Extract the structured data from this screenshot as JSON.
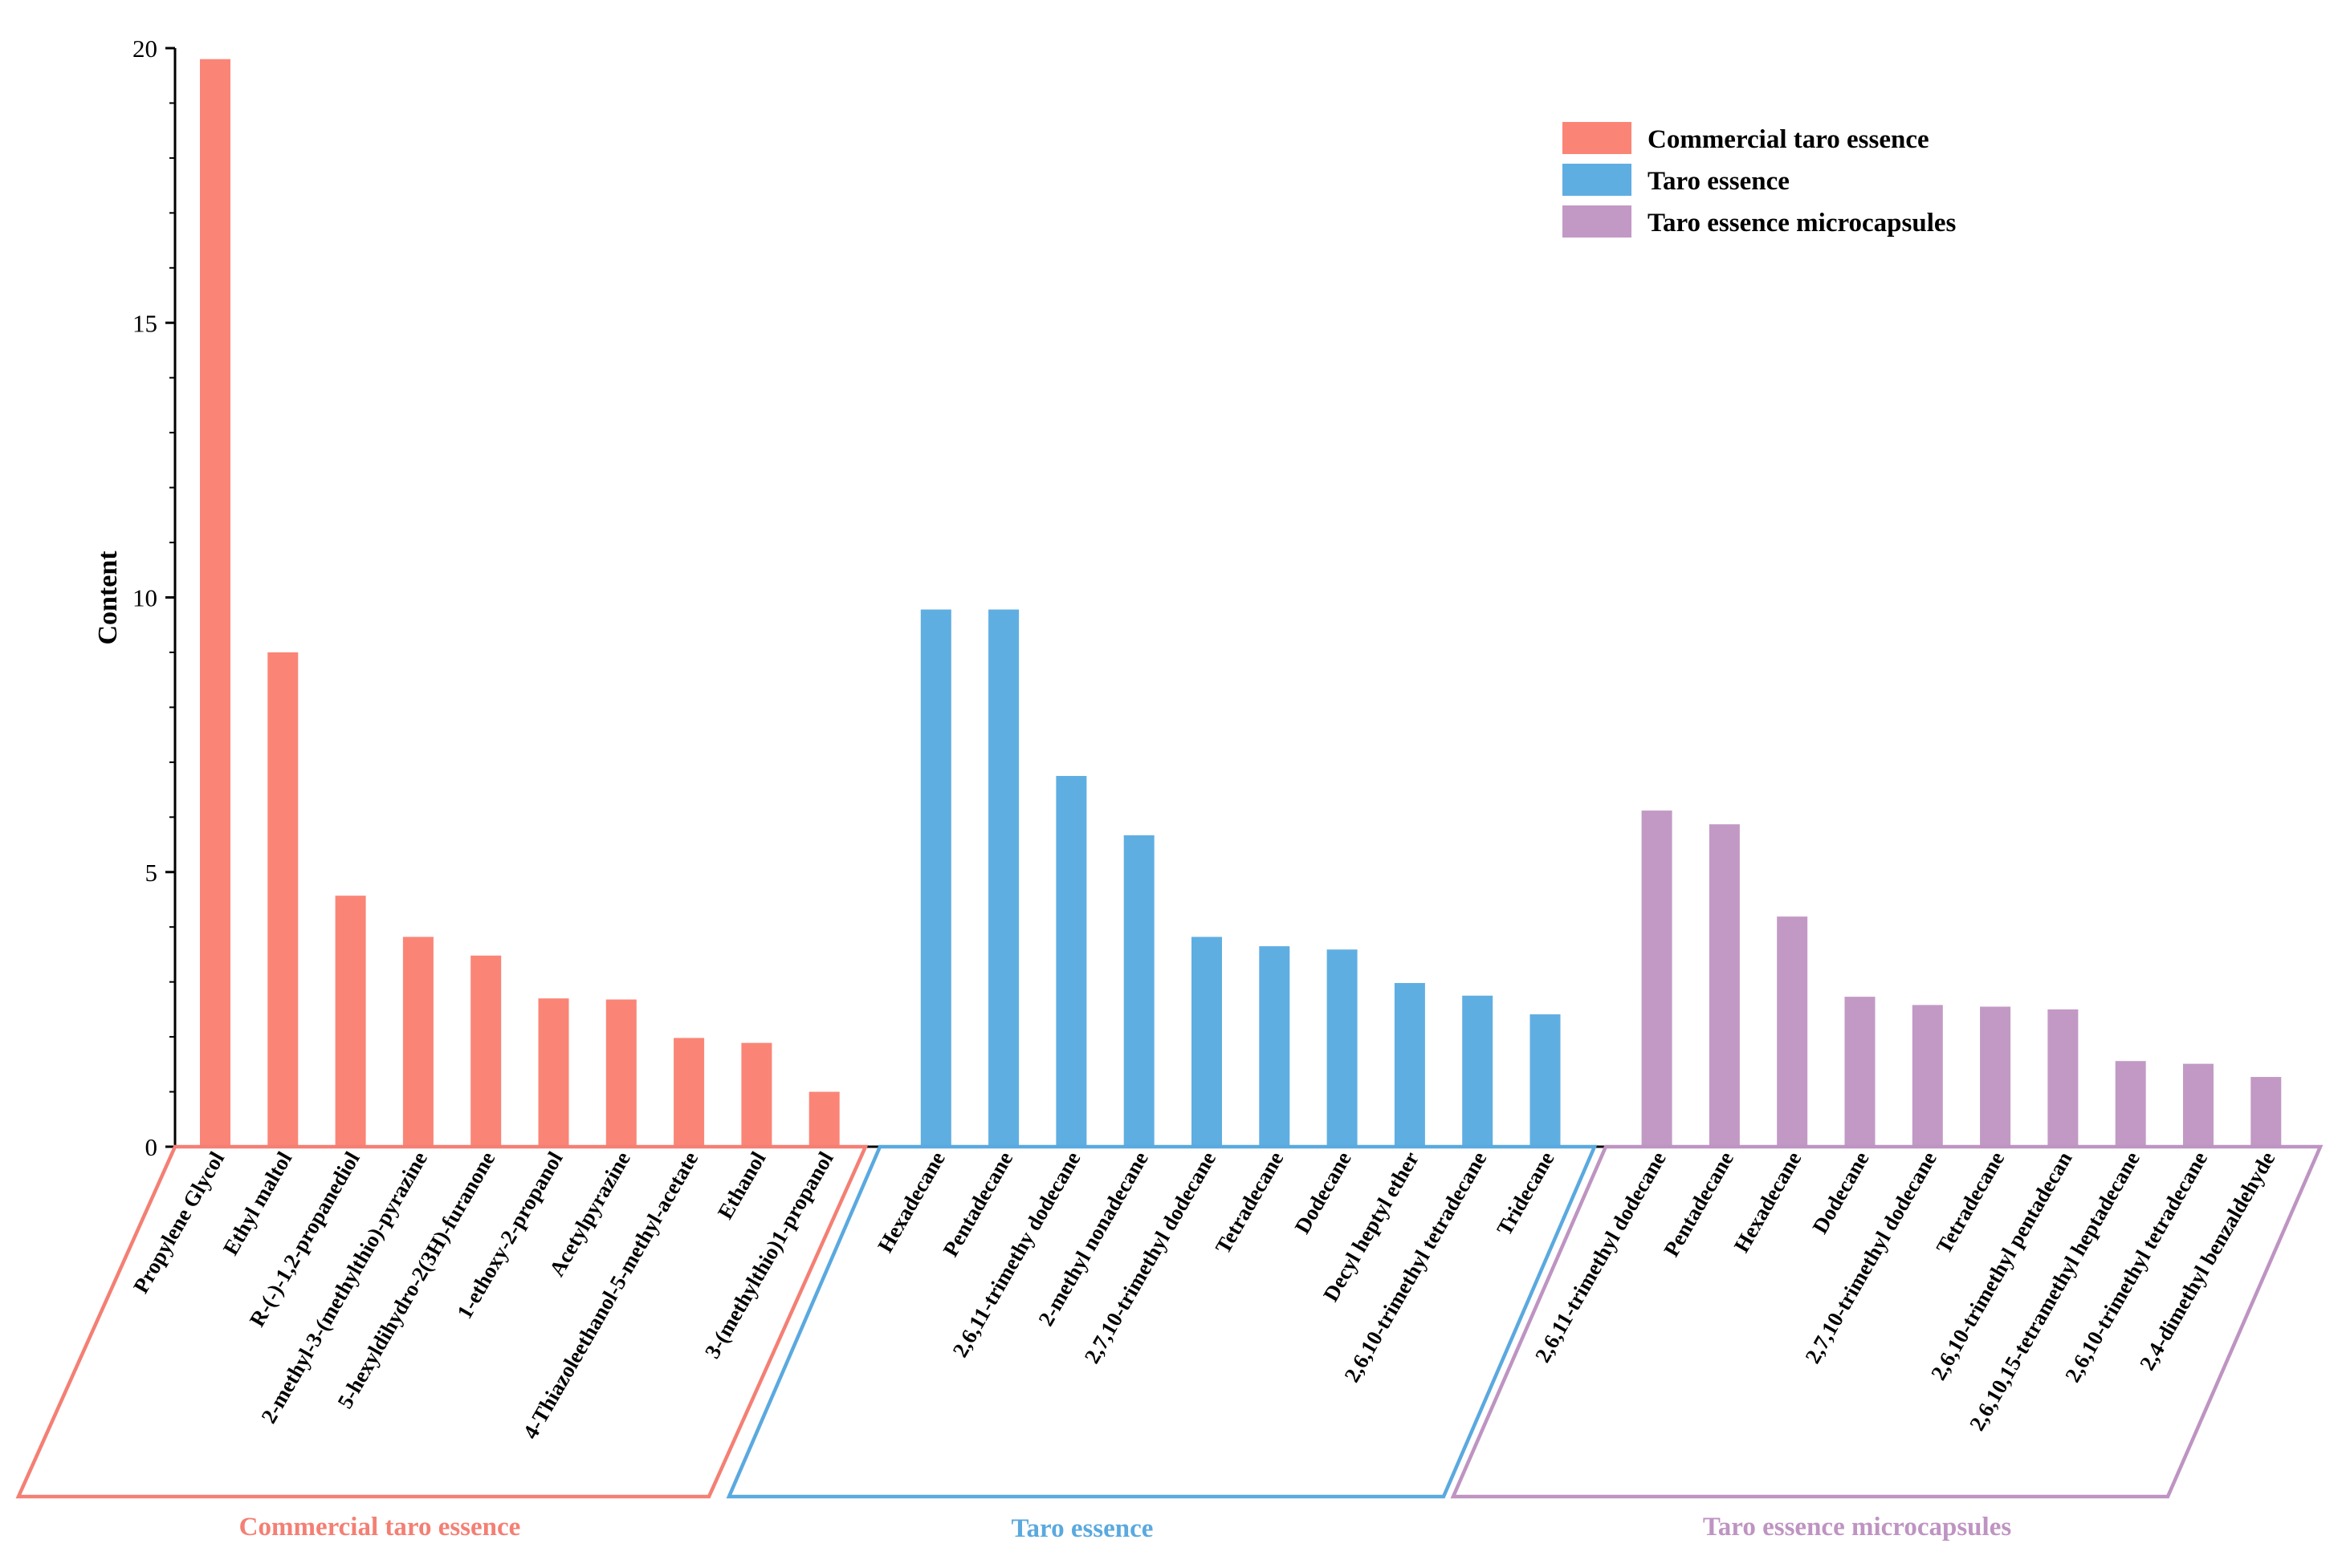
{
  "chart_data": {
    "type": "bar",
    "title": "",
    "xlabel": "",
    "ylabel": "Content",
    "ylim": [
      0,
      20
    ],
    "yticks": [
      0,
      5,
      10,
      15,
      20
    ],
    "grid": false,
    "legend": {
      "placement": "top-right",
      "entries": [
        {
          "label": "Commercial taro essence",
          "color": "#FA8576"
        },
        {
          "label": "Taro essence",
          "color": "#5FAEE2"
        },
        {
          "label": "Taro essence microcapsules",
          "color": "#C299C5"
        }
      ]
    },
    "groups": [
      {
        "name": "Commercial taro essence",
        "color": "#FA8576",
        "frame_color": "#F47F74",
        "categories": [
          "Propylene Glycol",
          "Ethyl maltol",
          "R-(-)-1,2-propanediol",
          "2-methyl-3-(methylthio)-pyrazine",
          "5-hexyldihydro-2(3H)-furanone",
          "1-ethoxy-2-propanol",
          "Acetylpyrazine",
          "4-Thiazoleethanol-5-methyl-acetate",
          "Ethanol",
          "3-(methylthio)1-propanol"
        ],
        "values": [
          19.8,
          9.0,
          4.57,
          3.82,
          3.48,
          2.7,
          2.68,
          1.98,
          1.89,
          1.0
        ]
      },
      {
        "name": "Taro essence",
        "color": "#5FAEE2",
        "frame_color": "#5AA9DF",
        "categories": [
          "Hexadecane",
          "Pentadecane",
          "2,6,11-trimethy dodecane",
          "2-methyl nonadecane",
          "2,7,10-trimethyl dodecane",
          "Tetradecane",
          "Dodecane",
          "Decyl heptyl ether",
          "2,6,10-trimethyl tetradecane",
          "Tridecane"
        ],
        "values": [
          9.78,
          9.78,
          6.75,
          5.67,
          3.82,
          3.65,
          3.59,
          2.98,
          2.75,
          2.41
        ]
      },
      {
        "name": "Taro essence microcapsules",
        "color": "#C299C5",
        "frame_color": "#BE94C2",
        "categories": [
          "2,6,11-trimethyl dodecane",
          "Pentadecane",
          "Hexadecane",
          "Dodecane",
          "2,7,10-trimethyl dodecane",
          "Tetradecane",
          "2,6,10-trimethyl pentadecan",
          "2,6,10,15-tetramethyl heptadecane",
          "2,6,10-trimethyl tetradecane",
          "2,4-dimethyl benzaldehyde"
        ],
        "values": [
          6.12,
          5.87,
          4.19,
          2.73,
          2.58,
          2.55,
          2.5,
          1.56,
          1.51,
          1.27
        ]
      }
    ]
  }
}
